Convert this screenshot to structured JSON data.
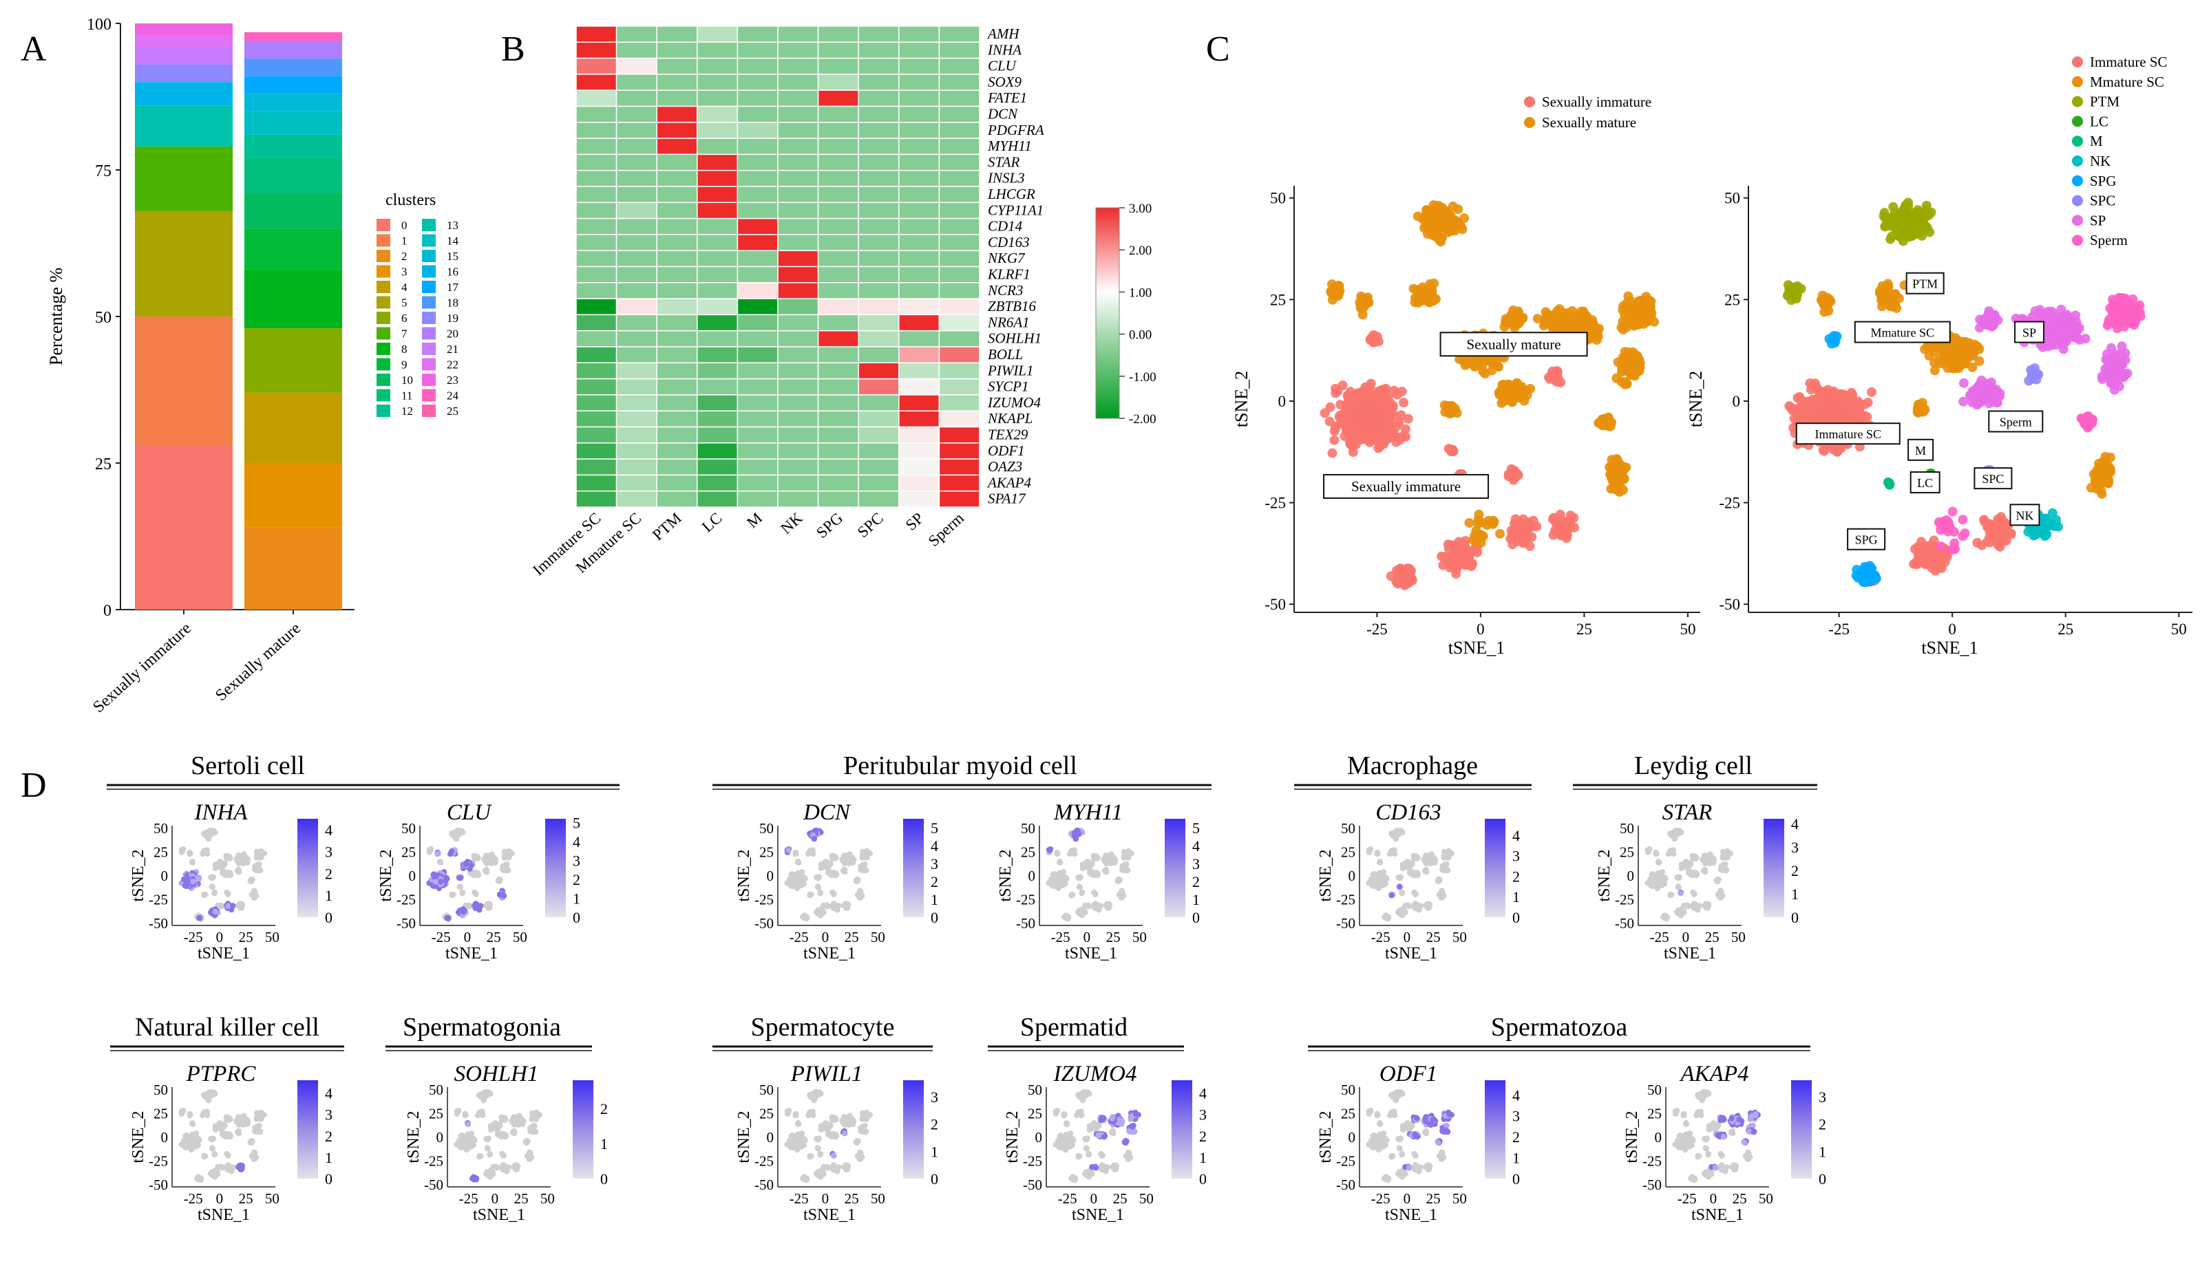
{
  "figure": {
    "panel_letters": [
      "A",
      "B",
      "C",
      "D"
    ]
  },
  "chart_data": [
    {
      "panel": "A",
      "type": "bar",
      "stacked": true,
      "ylabel": "Percentage %",
      "ylim": [
        0,
        100
      ],
      "yticks": [
        0,
        25,
        50,
        75,
        100
      ],
      "categories": [
        "Sexually immature",
        "Sexually mature"
      ],
      "legend_title": "clusters",
      "clusters": [
        "0",
        "1",
        "2",
        "3",
        "4",
        "5",
        "6",
        "7",
        "8",
        "9",
        "10",
        "11",
        "12",
        "13",
        "14",
        "15",
        "16",
        "17",
        "18",
        "19",
        "20",
        "21",
        "22",
        "23",
        "24",
        "25"
      ],
      "cluster_colors": [
        "#F8766D",
        "#F47F4A",
        "#EC8B18",
        "#E79200",
        "#C39C00",
        "#A9A400",
        "#86AC00",
        "#4BB300",
        "#00B51C",
        "#00BA38",
        "#00BC5E",
        "#00BF7D",
        "#00C096",
        "#00C1AC",
        "#00BFC4",
        "#00B9D8",
        "#00B3E8",
        "#00A9FF",
        "#4F98FF",
        "#8E89FF",
        "#B07EFF",
        "#C77CFF",
        "#DE71F5",
        "#F064E4",
        "#FF61C3",
        "#FB61A8"
      ],
      "series": [
        {
          "name": "Sexually immature",
          "segments": [
            {
              "cluster": "0",
              "value": 28.0
            },
            {
              "cluster": "1",
              "value": 22.0
            },
            {
              "cluster": "5",
              "value": 18.0
            },
            {
              "cluster": "7",
              "value": 11.0
            },
            {
              "cluster": "13",
              "value": 7.0
            },
            {
              "cluster": "16",
              "value": 4.0
            },
            {
              "cluster": "19",
              "value": 3.0
            },
            {
              "cluster": "21",
              "value": 3.0
            },
            {
              "cluster": "22",
              "value": 2.0
            },
            {
              "cluster": "23",
              "value": 2.0
            }
          ]
        },
        {
          "name": "Sexually mature",
          "segments": [
            {
              "cluster": "2",
              "value": 14.0
            },
            {
              "cluster": "3",
              "value": 11.0
            },
            {
              "cluster": "4",
              "value": 12.0
            },
            {
              "cluster": "6",
              "value": 11.0
            },
            {
              "cluster": "8",
              "value": 10.0
            },
            {
              "cluster": "9",
              "value": 7.0
            },
            {
              "cluster": "10",
              "value": 6.0
            },
            {
              "cluster": "11",
              "value": 6.0
            },
            {
              "cluster": "12",
              "value": 4.0
            },
            {
              "cluster": "14",
              "value": 4.0
            },
            {
              "cluster": "15",
              "value": 3.0
            },
            {
              "cluster": "17",
              "value": 3.0
            },
            {
              "cluster": "18",
              "value": 3.0
            },
            {
              "cluster": "20",
              "value": 3.0
            },
            {
              "cluster": "24",
              "value": 1.5
            }
          ]
        }
      ]
    },
    {
      "panel": "B",
      "type": "heatmap",
      "columns": [
        "Immature SC",
        "Mmature SC",
        "PTM",
        "LC",
        "M",
        "NK",
        "SPG",
        "SPC",
        "SP",
        "Sperm"
      ],
      "rows": [
        "AMH",
        "INHA",
        "CLU",
        "SOX9",
        "FATE1",
        "DCN",
        "PDGFRA",
        "MYH11",
        "STAR",
        "INSL3",
        "LHCGR",
        "CYP11A1",
        "CD14",
        "CD163",
        "NKG7",
        "KLRF1",
        "NCR3",
        "ZBTB16",
        "NR6A1",
        "SOHLH1",
        "BOLL",
        "PIWIL1",
        "SYCP1",
        "IZUMO4",
        "NKAPL",
        "TEX29",
        "ODF1",
        "OAZ3",
        "AKAP4",
        "SPA17"
      ],
      "values": [
        [
          3.0,
          -1.0,
          -1.0,
          -0.5,
          -1.0,
          -1.0,
          -1.0,
          -1.0,
          -1.0,
          -1.0
        ],
        [
          3.0,
          -1.0,
          -1.0,
          -1.0,
          -1.0,
          -1.0,
          -1.0,
          -1.0,
          -1.0,
          -1.0
        ],
        [
          2.0,
          0.6,
          -1.0,
          -1.0,
          -1.0,
          -1.0,
          -1.0,
          -1.0,
          -1.0,
          -1.0
        ],
        [
          3.0,
          -1.0,
          -1.0,
          -1.0,
          -1.0,
          -1.0,
          -0.7,
          -1.0,
          -1.0,
          -1.0
        ],
        [
          -0.3,
          -1.0,
          -1.0,
          -1.0,
          -1.0,
          -1.0,
          3.0,
          -1.0,
          -1.0,
          -1.0
        ],
        [
          -1.0,
          -1.0,
          3.0,
          -0.5,
          -1.0,
          -1.0,
          -1.0,
          -1.0,
          -1.0,
          -1.0
        ],
        [
          -1.0,
          -1.0,
          3.0,
          -0.6,
          -0.8,
          -1.0,
          -1.0,
          -1.0,
          -1.0,
          -1.0
        ],
        [
          -1.0,
          -1.0,
          3.0,
          -1.0,
          -1.0,
          -1.0,
          -1.0,
          -1.0,
          -1.0,
          -1.0
        ],
        [
          -1.0,
          -1.0,
          -1.0,
          3.0,
          -1.0,
          -1.0,
          -1.0,
          -1.0,
          -1.0,
          -1.0
        ],
        [
          -1.0,
          -1.0,
          -1.0,
          3.0,
          -1.0,
          -1.0,
          -1.0,
          -1.0,
          -1.0,
          -1.0
        ],
        [
          -1.0,
          -1.0,
          -1.0,
          3.0,
          -1.0,
          -1.0,
          -1.0,
          -1.0,
          -1.0,
          -1.0
        ],
        [
          -1.0,
          -0.8,
          -1.0,
          3.0,
          -1.0,
          -1.0,
          -1.0,
          -1.0,
          -1.0,
          -1.0
        ],
        [
          -1.0,
          -1.0,
          -1.0,
          -1.0,
          3.0,
          -1.0,
          -1.0,
          -1.0,
          -1.0,
          -1.0
        ],
        [
          -1.0,
          -1.0,
          -1.0,
          -1.0,
          3.0,
          -1.0,
          -1.0,
          -1.0,
          -1.0,
          -1.0
        ],
        [
          -1.0,
          -1.0,
          -1.0,
          -1.0,
          -1.0,
          3.0,
          -1.0,
          -1.0,
          -1.0,
          -1.0
        ],
        [
          -1.0,
          -1.0,
          -1.0,
          -1.0,
          -1.0,
          3.0,
          -1.0,
          -1.0,
          -1.0,
          -1.0
        ],
        [
          -1.0,
          -1.0,
          -1.0,
          -1.0,
          0.9,
          3.0,
          -1.0,
          -1.0,
          -1.0,
          -1.0
        ],
        [
          -2.0,
          0.8,
          -0.4,
          -0.2,
          -2.0,
          -1.2,
          0.8,
          0.8,
          0.6,
          0.7
        ],
        [
          -1.5,
          -1.0,
          -1.0,
          -1.8,
          -1.2,
          -1.0,
          -1.0,
          -0.5,
          2.5,
          0.2
        ],
        [
          -1.0,
          -1.0,
          -1.0,
          -1.0,
          -1.0,
          -1.0,
          3.0,
          -0.6,
          -1.0,
          -1.0
        ],
        [
          -1.6,
          -1.0,
          -1.0,
          -1.4,
          -1.4,
          -1.0,
          -1.0,
          -1.0,
          1.6,
          2.0
        ],
        [
          -1.4,
          -0.6,
          -1.0,
          -1.2,
          -1.0,
          -1.0,
          -1.0,
          3.0,
          -0.4,
          -0.8
        ],
        [
          -1.4,
          -0.8,
          -1.0,
          -1.0,
          -1.0,
          -1.0,
          -1.0,
          2.0,
          0.4,
          -0.6
        ],
        [
          -1.4,
          -0.7,
          -1.0,
          -1.5,
          -1.0,
          -1.0,
          -1.0,
          -1.0,
          3.0,
          -0.8
        ],
        [
          -1.4,
          -0.6,
          -1.0,
          -1.3,
          -1.0,
          -1.0,
          -1.0,
          -0.8,
          3.0,
          0.6
        ],
        [
          -1.4,
          -0.7,
          -1.0,
          -1.3,
          -1.0,
          -1.0,
          -1.0,
          -0.8,
          0.6,
          3.0
        ],
        [
          -1.6,
          -0.8,
          -1.0,
          -1.8,
          -1.0,
          -1.0,
          -1.0,
          -1.0,
          0.4,
          3.0
        ],
        [
          -1.5,
          -0.8,
          -1.0,
          -1.6,
          -1.0,
          -1.0,
          -1.0,
          -1.0,
          0.3,
          3.0
        ],
        [
          -1.6,
          -0.8,
          -1.0,
          -1.5,
          -1.0,
          -1.0,
          -1.0,
          -1.0,
          0.6,
          3.0
        ],
        [
          -1.6,
          -0.7,
          -1.0,
          -1.5,
          -1.0,
          -1.0,
          -1.0,
          -1.0,
          0.4,
          3.0
        ]
      ],
      "colorbar": {
        "range": [
          -2.0,
          3.0
        ],
        "ticks": [
          "3.00",
          "2.00",
          "1.00",
          "0.00",
          "-1.00",
          "-2.00"
        ],
        "low_color": "#009a1e",
        "mid_color": "#ffffff",
        "high_color": "#ee2b2b"
      }
    },
    {
      "panel": "C",
      "type": "scatter",
      "xlabel": "tSNE_1",
      "ylabel": "tSNE_2",
      "xlim": [
        -45,
        53
      ],
      "ylim": [
        -52,
        53
      ],
      "xticks": [
        -25,
        0,
        25,
        50
      ],
      "yticks": [
        50,
        25,
        0,
        -25,
        -50
      ],
      "plots": [
        {
          "legend": [
            {
              "label": "Sexually immature",
              "color": "#F8766D"
            },
            {
              "label": "Sexually mature",
              "color": "#E8900B"
            }
          ],
          "annotations": [
            {
              "label": "Sexually mature",
              "x": 8,
              "y": 14
            },
            {
              "label": "Sexually immature",
              "x": -18,
              "y": -21
            }
          ]
        },
        {
          "legend": [
            {
              "label": "Immature SC",
              "color": "#F8766D"
            },
            {
              "label": "Mmature SC",
              "color": "#E8900B"
            },
            {
              "label": "PTM",
              "color": "#9AA800"
            },
            {
              "label": "LC",
              "color": "#29A81A"
            },
            {
              "label": "M",
              "color": "#00BF7D"
            },
            {
              "label": "NK",
              "color": "#00BFC4"
            },
            {
              "label": "SPG",
              "color": "#00A9FF"
            },
            {
              "label": "SPC",
              "color": "#8E89FF"
            },
            {
              "label": "SP",
              "color": "#E86CE8"
            },
            {
              "label": "Sperm",
              "color": "#FF61C3"
            }
          ],
          "annotations": [
            {
              "label": "PTM",
              "x": -6,
              "y": 29
            },
            {
              "label": "Mmature SC",
              "x": -11,
              "y": 17
            },
            {
              "label": "SP",
              "x": 17,
              "y": 17
            },
            {
              "label": "Sperm",
              "x": 14,
              "y": -5
            },
            {
              "label": "Immature SC",
              "x": -23,
              "y": -8
            },
            {
              "label": "M",
              "x": -7,
              "y": -12
            },
            {
              "label": "LC",
              "x": -6,
              "y": -20
            },
            {
              "label": "SPC",
              "x": 9,
              "y": -19
            },
            {
              "label": "NK",
              "x": 16,
              "y": -28
            },
            {
              "label": "SPG",
              "x": -19,
              "y": -34
            }
          ]
        }
      ]
    },
    {
      "panel": "D",
      "type": "scatter",
      "description_type": "feature_plots",
      "xlabel": "tSNE_1",
      "ylabel": "tSNE_2",
      "xticks": [
        -25,
        0,
        25,
        50
      ],
      "yticks": [
        50,
        25,
        0,
        -25,
        -50
      ],
      "groups": [
        {
          "title": "Sertoli cell",
          "genes": [
            {
              "gene": "INHA",
              "max": 4.5,
              "ticks": [
                4,
                3,
                2,
                1,
                0
              ],
              "hot_clusters": [
                "Immature SC"
              ]
            },
            {
              "gene": "CLU",
              "max": 5.2,
              "ticks": [
                5,
                4,
                3,
                2,
                1,
                0
              ],
              "hot_clusters": [
                "Immature SC",
                "Mmature SC"
              ]
            }
          ]
        },
        {
          "title": "Peritubular myoid cell",
          "genes": [
            {
              "gene": "DCN",
              "max": 5.5,
              "ticks": [
                5,
                4,
                3,
                2,
                1,
                0
              ],
              "hot_clusters": [
                "PTM"
              ]
            },
            {
              "gene": "MYH11",
              "max": 5.5,
              "ticks": [
                5,
                4,
                3,
                2,
                1,
                0
              ],
              "hot_clusters": [
                "PTM"
              ]
            }
          ]
        },
        {
          "title": "Macrophage",
          "genes": [
            {
              "gene": "CD163",
              "max": 4.8,
              "ticks": [
                4,
                3,
                2,
                1,
                0
              ],
              "hot_clusters": [
                "M"
              ]
            }
          ]
        },
        {
          "title": "Leydig cell",
          "genes": [
            {
              "gene": "STAR",
              "max": 4.2,
              "ticks": [
                4,
                3,
                2,
                1,
                0
              ],
              "hot_clusters": [
                "LC"
              ]
            }
          ]
        },
        {
          "title": "Natural killer cell",
          "genes": [
            {
              "gene": "PTPRC",
              "max": 4.6,
              "ticks": [
                4,
                3,
                2,
                1,
                0
              ],
              "hot_clusters": [
                "NK"
              ]
            }
          ]
        },
        {
          "title": "Spermatogonia",
          "genes": [
            {
              "gene": "SOHLH1",
              "max": 2.8,
              "ticks": [
                2,
                1,
                0
              ],
              "hot_clusters": [
                "SPG"
              ]
            }
          ]
        },
        {
          "title": "Spermatocyte",
          "genes": [
            {
              "gene": "PIWIL1",
              "max": 3.6,
              "ticks": [
                3,
                2,
                1,
                0
              ],
              "hot_clusters": [
                "SPC"
              ]
            }
          ]
        },
        {
          "title": "Spermatid",
          "genes": [
            {
              "gene": "IZUMO4",
              "max": 4.6,
              "ticks": [
                4,
                3,
                2,
                1,
                0
              ],
              "hot_clusters": [
                "SP",
                "Sperm"
              ]
            }
          ]
        },
        {
          "title": "Spermatozoa",
          "genes": [
            {
              "gene": "ODF1",
              "max": 4.7,
              "ticks": [
                4,
                3,
                2,
                1,
                0
              ],
              "hot_clusters": [
                "SP",
                "Sperm"
              ]
            },
            {
              "gene": "AKAP4",
              "max": 3.6,
              "ticks": [
                3,
                2,
                1,
                0
              ],
              "hot_clusters": [
                "SP",
                "Sperm"
              ]
            }
          ]
        }
      ]
    }
  ]
}
